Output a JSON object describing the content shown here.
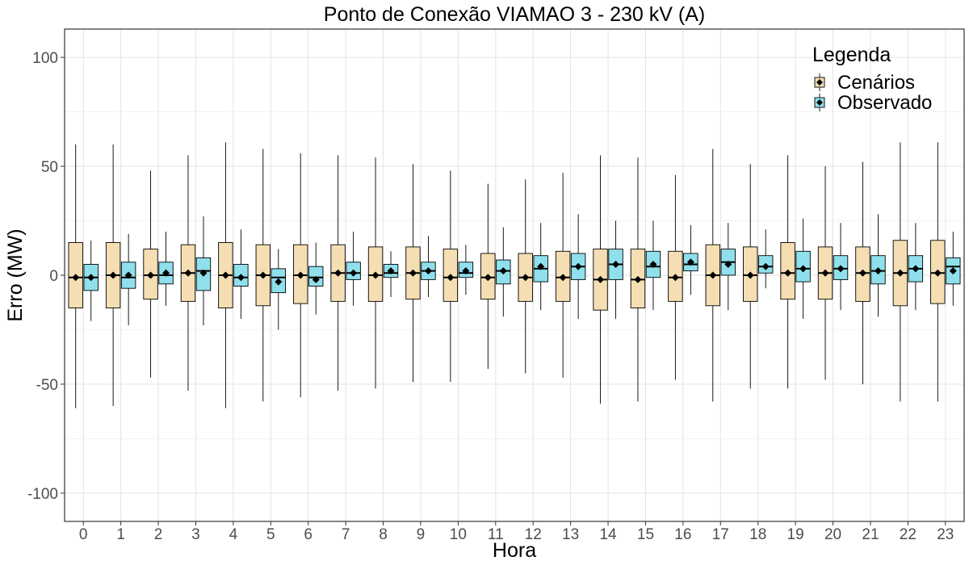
{
  "chart_data": {
    "type": "box",
    "title": "Ponto de Conexão VIAMAO 3 - 230 kV (A)",
    "xlabel": "Hora",
    "ylabel": "Erro (MW)",
    "ylim": [
      -113,
      113
    ],
    "yticks": [
      -100,
      -50,
      0,
      50,
      100
    ],
    "grid": true,
    "legend": {
      "title": "Legenda",
      "position": "top-right"
    },
    "categories": [
      "0",
      "1",
      "2",
      "3",
      "4",
      "5",
      "6",
      "7",
      "8",
      "9",
      "10",
      "11",
      "12",
      "13",
      "14",
      "15",
      "16",
      "17",
      "18",
      "19",
      "20",
      "21",
      "22",
      "23"
    ],
    "series": [
      {
        "name": "Cenários",
        "color": "#f5deb3",
        "whisker_low": [
          -61,
          -60,
          -47,
          -53,
          -61,
          -58,
          -56,
          -53,
          -52,
          -49,
          -49,
          -43,
          -45,
          -47,
          -59,
          -58,
          -48,
          -58,
          -52,
          -52,
          -48,
          -50,
          -58,
          -58
        ],
        "q1": [
          -15,
          -15,
          -11,
          -12,
          -15,
          -14,
          -13,
          -12,
          -12,
          -11,
          -12,
          -11,
          -12,
          -12,
          -16,
          -15,
          -12,
          -14,
          -12,
          -11,
          -11,
          -12,
          -14,
          -13
        ],
        "median": [
          -1,
          0,
          0,
          1,
          0,
          0,
          0,
          1,
          0,
          1,
          -1,
          -1,
          -1,
          -1,
          -2,
          -2,
          -1,
          0,
          0,
          1,
          1,
          1,
          1,
          1
        ],
        "mean": [
          -1,
          0,
          0,
          1,
          0,
          0,
          0,
          1,
          0,
          1,
          -1,
          -1,
          -1,
          -1,
          -2,
          -2,
          -1,
          0,
          0,
          1,
          1,
          1,
          1,
          1
        ],
        "q3": [
          15,
          15,
          12,
          14,
          15,
          14,
          14,
          14,
          13,
          13,
          12,
          10,
          10,
          11,
          12,
          12,
          11,
          14,
          13,
          15,
          13,
          13,
          16,
          16
        ],
        "whisker_high": [
          60,
          60,
          48,
          55,
          61,
          58,
          56,
          55,
          54,
          51,
          48,
          42,
          44,
          47,
          55,
          54,
          46,
          58,
          51,
          55,
          50,
          52,
          61,
          61
        ]
      },
      {
        "name": "Observado",
        "color": "#8fe0ec",
        "whisker_low": [
          -21,
          -23,
          -14,
          -23,
          -20,
          -25,
          -18,
          -14,
          -10,
          -10,
          -9,
          -19,
          -16,
          -20,
          -20,
          -16,
          -9,
          -16,
          -6,
          -20,
          -16,
          -19,
          -16,
          -14
        ],
        "q1": [
          -7,
          -6,
          -4,
          -7,
          -5,
          -8,
          -5,
          -2,
          -1,
          -2,
          -1,
          -4,
          -3,
          -2,
          -2,
          -1,
          2,
          0,
          1,
          -3,
          -2,
          -4,
          -3,
          -4
        ],
        "median": [
          -1,
          -1,
          0,
          2,
          -1,
          -1,
          -1,
          1,
          1,
          2,
          1,
          2,
          3,
          4,
          5,
          4,
          5,
          6,
          4,
          3,
          3,
          2,
          3,
          4
        ],
        "mean": [
          -1,
          0,
          1,
          1,
          -1,
          -3,
          -2,
          1,
          2,
          2,
          2,
          2,
          4,
          4,
          5,
          5,
          6,
          5,
          4,
          3,
          3,
          2,
          3,
          2
        ],
        "q3": [
          5,
          6,
          6,
          8,
          5,
          3,
          4,
          6,
          5,
          6,
          6,
          7,
          9,
          10,
          12,
          11,
          10,
          12,
          9,
          11,
          9,
          9,
          9,
          8
        ],
        "whisker_high": [
          16,
          19,
          20,
          27,
          21,
          12,
          15,
          20,
          11,
          18,
          14,
          22,
          24,
          28,
          25,
          25,
          23,
          24,
          21,
          26,
          24,
          28,
          24,
          20
        ]
      }
    ]
  }
}
